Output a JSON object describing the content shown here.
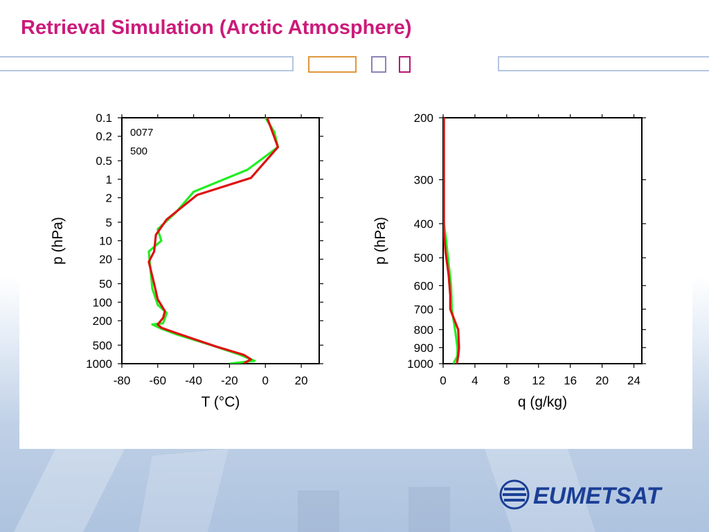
{
  "slide": {
    "title": "Retrieval Simulation (Arctic Atmosphere)",
    "logo_text": "EUMETSAT"
  },
  "colors": {
    "title": "#cc1a7a",
    "series_green": "#22ee22",
    "series_red": "#dd1111",
    "logo_blue": "#1b3f96"
  },
  "chart_data": [
    {
      "type": "line",
      "annotations": [
        "0077",
        "500"
      ],
      "xlabel": "T (°C)",
      "ylabel": "p (hPa)",
      "xlim": [
        -80,
        30
      ],
      "ylim": [
        1000,
        0.1
      ],
      "yscale": "log",
      "xticks": [
        -80,
        -60,
        -40,
        -20,
        0,
        20
      ],
      "yticks": [
        0.1,
        0.2,
        0.5,
        1,
        2,
        5,
        10,
        20,
        50,
        100,
        200,
        500,
        1000
      ],
      "series": [
        {
          "color": "#22ee22",
          "points": [
            [
              0,
              0.1
            ],
            [
              5,
              0.17
            ],
            [
              7,
              0.3
            ],
            [
              -10,
              0.7
            ],
            [
              -40,
              1.6
            ],
            [
              -50,
              3.5
            ],
            [
              -60,
              6.5
            ],
            [
              -58,
              10
            ],
            [
              -65,
              15
            ],
            [
              -64,
              30
            ],
            [
              -63,
              60
            ],
            [
              -60,
              110
            ],
            [
              -55,
              150
            ],
            [
              -57,
              220
            ],
            [
              -63,
              230
            ],
            [
              -58,
              270
            ],
            [
              -50,
              330
            ],
            [
              -30,
              500
            ],
            [
              -15,
              700
            ],
            [
              -6,
              900
            ],
            [
              -20,
              1000
            ]
          ]
        },
        {
          "color": "#dd1111",
          "points": [
            [
              1,
              0.1
            ],
            [
              7,
              0.3
            ],
            [
              -8,
              0.95
            ],
            [
              -38,
              1.8
            ],
            [
              -55,
              4.5
            ],
            [
              -61,
              8
            ],
            [
              -62,
              15
            ],
            [
              -65,
              22
            ],
            [
              -62,
              50
            ],
            [
              -60,
              90
            ],
            [
              -56,
              140
            ],
            [
              -57,
              180
            ],
            [
              -60,
              230
            ],
            [
              -58,
              260
            ],
            [
              -48,
              330
            ],
            [
              -28,
              520
            ],
            [
              -12,
              720
            ],
            [
              -8,
              850
            ],
            [
              -11,
              950
            ],
            [
              -12,
              1000
            ]
          ]
        }
      ]
    },
    {
      "type": "line",
      "xlabel": "q (g/kg)",
      "ylabel": "p (hPa)",
      "xlim": [
        0,
        25
      ],
      "ylim": [
        1000,
        200
      ],
      "yscale": "log",
      "xticks": [
        0,
        4,
        8,
        12,
        16,
        20,
        24
      ],
      "yticks": [
        200,
        300,
        400,
        500,
        600,
        700,
        800,
        900,
        1000
      ],
      "series": [
        {
          "color": "#22ee22",
          "points": [
            [
              0.1,
              200
            ],
            [
              0.1,
              400
            ],
            [
              0.3,
              430
            ],
            [
              0.7,
              520
            ],
            [
              1.0,
              600
            ],
            [
              1.1,
              700
            ],
            [
              1.5,
              800
            ],
            [
              1.8,
              900
            ],
            [
              1.8,
              950
            ],
            [
              1.3,
              1000
            ]
          ]
        },
        {
          "color": "#dd1111",
          "points": [
            [
              0.1,
              200
            ],
            [
              0.1,
              420
            ],
            [
              0.3,
              480
            ],
            [
              0.7,
              560
            ],
            [
              0.9,
              640
            ],
            [
              0.9,
              700
            ],
            [
              1.4,
              750
            ],
            [
              1.9,
              800
            ],
            [
              2.0,
              900
            ],
            [
              1.9,
              950
            ],
            [
              1.7,
              1010
            ]
          ]
        }
      ]
    }
  ]
}
